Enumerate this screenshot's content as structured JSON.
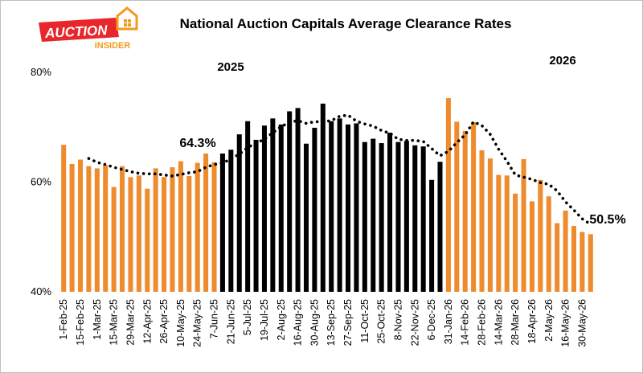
{
  "title": "National Auction Capitals Average Clearance Rates",
  "logo": {
    "word1": "AUCTION",
    "word2": "INSIDER"
  },
  "chart_data": {
    "type": "bar",
    "y_ticks": [
      "80%",
      "60%",
      "40%"
    ],
    "ylim": [
      40,
      80
    ],
    "trend_line": "dotted moving average",
    "colors": {
      "bar_2025_early": "#ED8B2D",
      "bar_2025_mid": "#000000",
      "bar_2026": "#ED8B2D",
      "trend": "#000000"
    },
    "annotations": {
      "year_2025": "2025",
      "year_2026": "2026",
      "mid_value": "64.3%",
      "end_value": "50.5%"
    },
    "x_tick_labels": [
      "1-Feb-25",
      "15-Feb-25",
      "1-Mar-25",
      "15-Mar-25",
      "29-Mar-25",
      "12-Apr-25",
      "26-Apr-25",
      "10-May-25",
      "24-May-25",
      "7-Jun-25",
      "21-Jun-25",
      "5-Jul-25",
      "19-Jul-25",
      "2-Aug-25",
      "16-Aug-25",
      "30-Aug-25",
      "13-Sep-25",
      "27-Sep-25",
      "11-Oct-25",
      "25-Oct-25",
      "8-Nov-25",
      "22-Nov-25",
      "6-Dec-25",
      "31-Jan-26",
      "14-Feb-26",
      "28-Feb-26",
      "14-Mar-26",
      "28-Mar-26",
      "18-Apr-26",
      "2-May-26",
      "16-May-26",
      "30-May-26"
    ],
    "bars": [
      {
        "v": 66.8,
        "c": "orange"
      },
      {
        "v": 63.3,
        "c": "orange"
      },
      {
        "v": 64.1,
        "c": "orange"
      },
      {
        "v": 62.9,
        "c": "orange"
      },
      {
        "v": 62.5,
        "c": "orange"
      },
      {
        "v": 63.1,
        "c": "orange"
      },
      {
        "v": 59.1,
        "c": "orange"
      },
      {
        "v": 62.9,
        "c": "orange"
      },
      {
        "v": 60.9,
        "c": "orange"
      },
      {
        "v": 61.2,
        "c": "orange"
      },
      {
        "v": 58.8,
        "c": "orange"
      },
      {
        "v": 62.5,
        "c": "orange"
      },
      {
        "v": 60.9,
        "c": "orange"
      },
      {
        "v": 62.7,
        "c": "orange"
      },
      {
        "v": 63.8,
        "c": "orange"
      },
      {
        "v": 61.1,
        "c": "orange"
      },
      {
        "v": 63.5,
        "c": "orange"
      },
      {
        "v": 65.2,
        "c": "orange"
      },
      {
        "v": 63.6,
        "c": "orange"
      },
      {
        "v": 65.2,
        "c": "black"
      },
      {
        "v": 65.9,
        "c": "black"
      },
      {
        "v": 68.7,
        "c": "black"
      },
      {
        "v": 71.1,
        "c": "black"
      },
      {
        "v": 67.7,
        "c": "black"
      },
      {
        "v": 70.3,
        "c": "black"
      },
      {
        "v": 71.6,
        "c": "black"
      },
      {
        "v": 70.5,
        "c": "black"
      },
      {
        "v": 72.9,
        "c": "black"
      },
      {
        "v": 73.5,
        "c": "black"
      },
      {
        "v": 67.0,
        "c": "black"
      },
      {
        "v": 69.9,
        "c": "black"
      },
      {
        "v": 74.3,
        "c": "black"
      },
      {
        "v": 71.1,
        "c": "black"
      },
      {
        "v": 71.6,
        "c": "black"
      },
      {
        "v": 70.5,
        "c": "black"
      },
      {
        "v": 70.7,
        "c": "black"
      },
      {
        "v": 67.3,
        "c": "black"
      },
      {
        "v": 67.9,
        "c": "black"
      },
      {
        "v": 67.1,
        "c": "black"
      },
      {
        "v": 69.0,
        "c": "black"
      },
      {
        "v": 67.3,
        "c": "black"
      },
      {
        "v": 67.5,
        "c": "black"
      },
      {
        "v": 66.7,
        "c": "black"
      },
      {
        "v": 66.5,
        "c": "black"
      },
      {
        "v": 60.4,
        "c": "black"
      },
      {
        "v": 63.7,
        "c": "black"
      },
      {
        "v": 75.3,
        "c": "orange"
      },
      {
        "v": 71.0,
        "c": "orange"
      },
      {
        "v": 69.3,
        "c": "orange"
      },
      {
        "v": 70.9,
        "c": "orange"
      },
      {
        "v": 65.8,
        "c": "orange"
      },
      {
        "v": 64.3,
        "c": "orange"
      },
      {
        "v": 61.3,
        "c": "orange"
      },
      {
        "v": 61.2,
        "c": "orange"
      },
      {
        "v": 57.9,
        "c": "orange"
      },
      {
        "v": 64.2,
        "c": "orange"
      },
      {
        "v": 56.5,
        "c": "orange"
      },
      {
        "v": 60.4,
        "c": "orange"
      },
      {
        "v": 57.4,
        "c": "orange"
      },
      {
        "v": 52.5,
        "c": "orange"
      },
      {
        "v": 54.8,
        "c": "orange"
      },
      {
        "v": 52.0,
        "c": "orange"
      },
      {
        "v": 50.9,
        "c": "orange"
      },
      {
        "v": 50.5,
        "c": "orange"
      }
    ],
    "trend": [
      null,
      null,
      null,
      64.3,
      63.6,
      63.2,
      62.7,
      62.3,
      61.9,
      61.6,
      61.5,
      61.5,
      61.3,
      61.1,
      61.4,
      61.7,
      61.9,
      62.7,
      63.2,
      63.5,
      64.2,
      65.1,
      66.3,
      67.1,
      67.8,
      69.0,
      70.1,
      70.9,
      71.2,
      70.7,
      71.0,
      71.0,
      71.2,
      72.0,
      72.2,
      71.1,
      70.6,
      70.2,
      69.4,
      68.9,
      67.8,
      67.6,
      67.6,
      67.4,
      66.1,
      64.8,
      65.6,
      67.2,
      68.6,
      71.0,
      70.3,
      68.7,
      66.0,
      63.8,
      61.3,
      60.9,
      60.5,
      59.9,
      59.6,
      58.4,
      56.4,
      54.9,
      53.3,
      52.3
    ]
  }
}
